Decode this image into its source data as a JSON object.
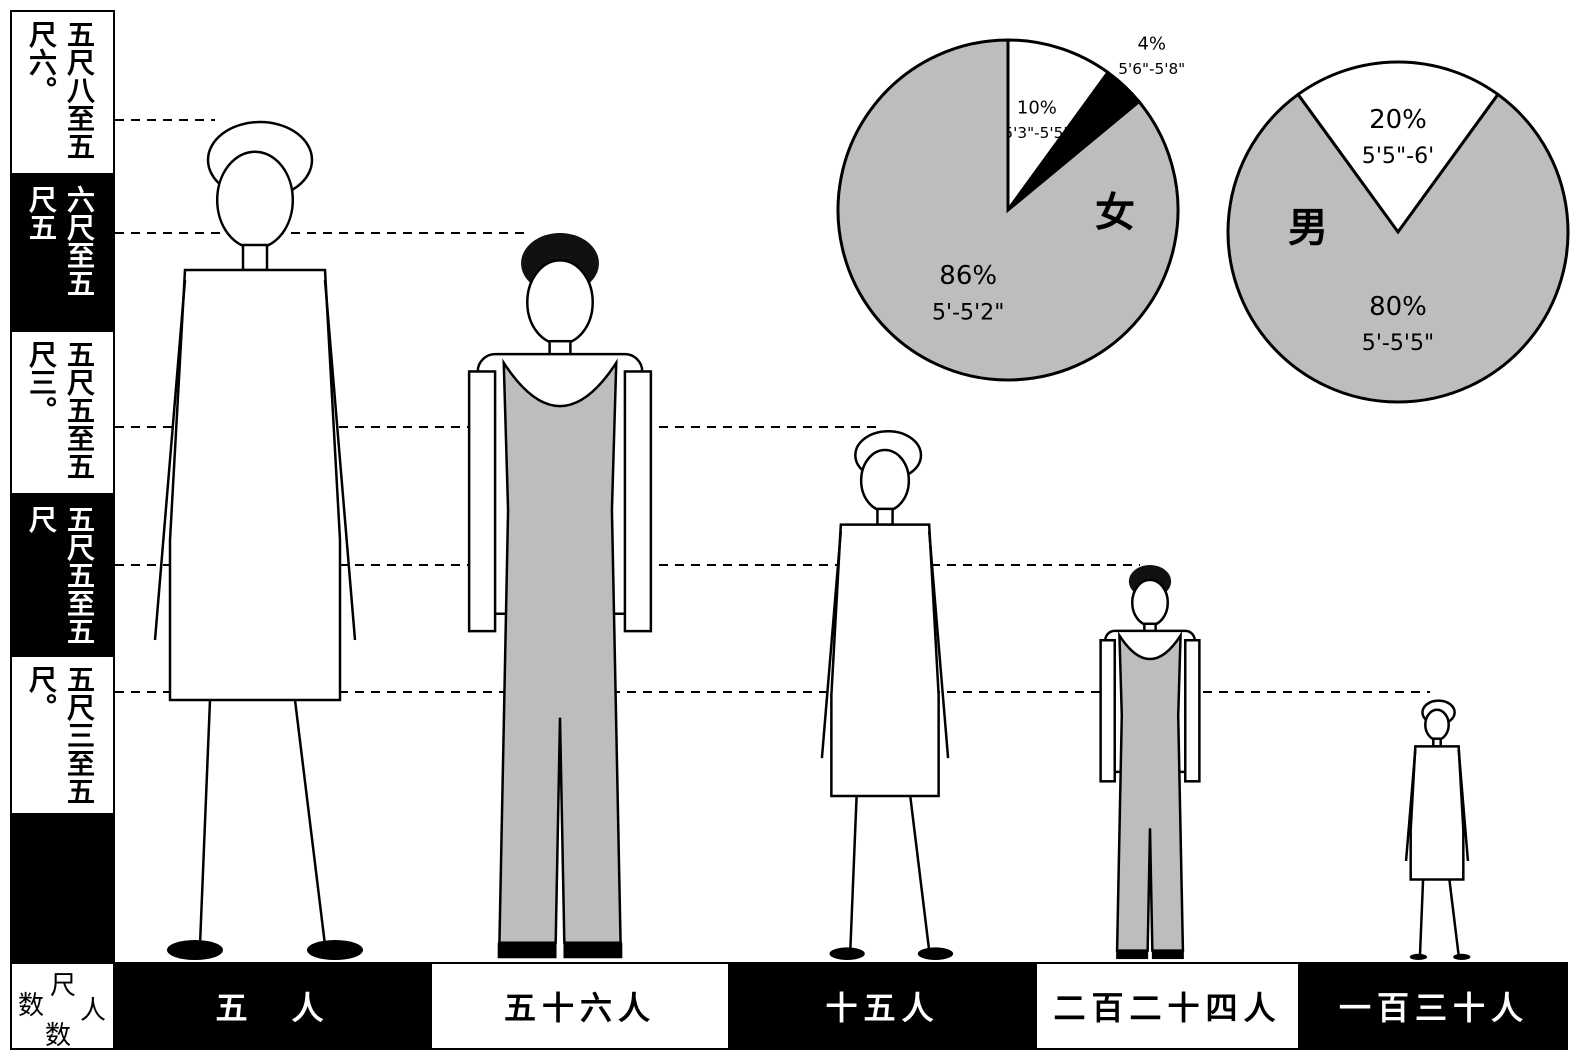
{
  "height_ranges": [
    "五尺八至五尺六。",
    "六尺至五尺五",
    "五尺五至五尺三。",
    "五尺五至五尺",
    "五尺三至五尺。"
  ],
  "axis_corner": {
    "top": "尺",
    "right": "人",
    "left": "数",
    "bottom": "数"
  },
  "counts": [
    "五　人",
    "五十六人",
    "十五人",
    "二百二十四人",
    "一百三十人"
  ],
  "chart_data": [
    {
      "type": "pie",
      "title": "女",
      "categories": [
        "5'3\"-5'5\"",
        "5'6\"-5'8\"",
        "5'-5'2\""
      ],
      "values": [
        10,
        4,
        86
      ],
      "value_labels": [
        "10%",
        "4%",
        "86%"
      ],
      "colors": [
        "#ffffff",
        "#000000",
        "#bdbdbd"
      ]
    },
    {
      "type": "pie",
      "title": "男",
      "categories": [
        "5'5\"-6'",
        "5'-5'5\""
      ],
      "values": [
        20,
        80
      ],
      "value_labels": [
        "20%",
        "80%"
      ],
      "colors": [
        "#ffffff",
        "#bdbdbd"
      ]
    }
  ]
}
